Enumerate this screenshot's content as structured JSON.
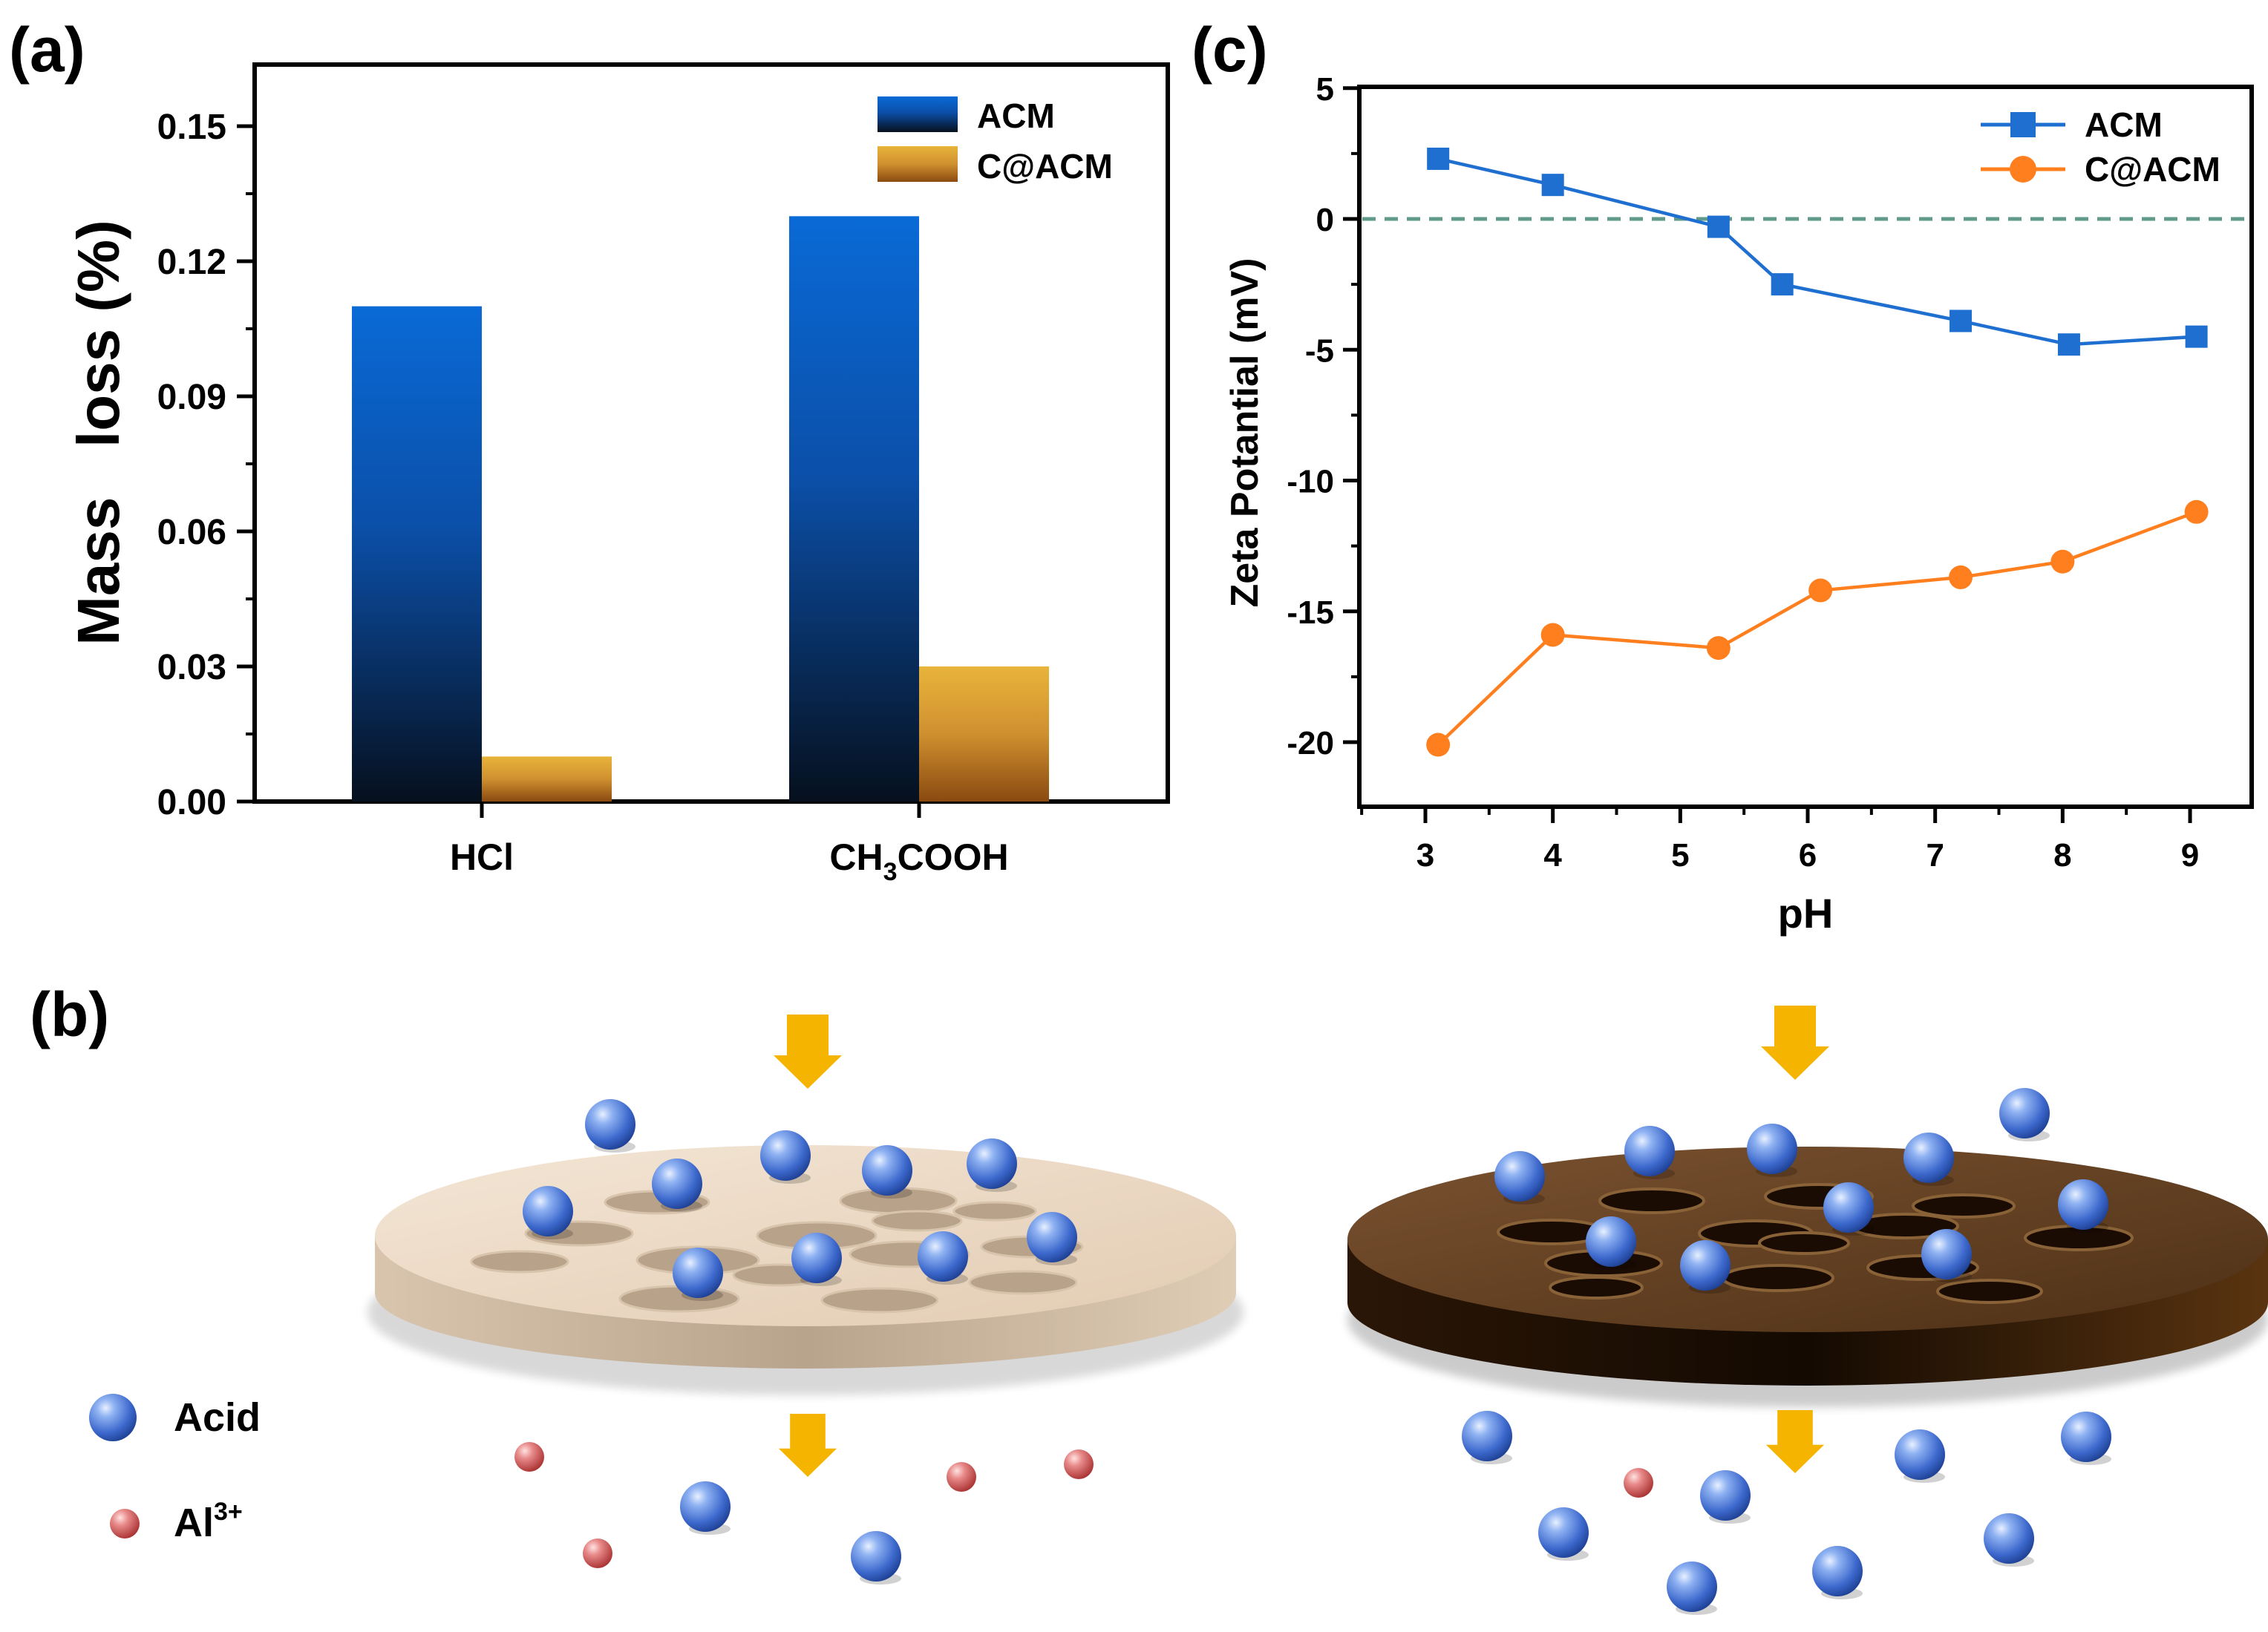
{
  "panels": {
    "a": "(a)",
    "b": "(b)",
    "c": "(c)"
  },
  "colors": {
    "acm_blue": "#1565c0",
    "acm_blue_top": "#0a6ad6",
    "acm_blue_bottom": "#06101e",
    "cacm_gold_top": "#e8b43a",
    "cacm_gold_bottom": "#8a4a10",
    "line_blue": "#1f6fd1",
    "line_orange": "#ff7f1f",
    "zero_line": "#5f9a8a",
    "arrow": "#f5b400",
    "membrane_light": "#ecd9c4",
    "membrane_dark": "#5a3818",
    "acid_sphere": "#4a78d8",
    "al_sphere": "#d85a5a"
  },
  "chart_data": [
    {
      "type": "bar",
      "title": "",
      "xlabel": "",
      "ylabel": "Mass   loss (%)",
      "categories": [
        "HCl",
        "CH3COOH"
      ],
      "category_display": [
        {
          "main": "HCl",
          "sub": "",
          "tail": ""
        },
        {
          "main": "CH",
          "sub": "3",
          "tail": "COOH"
        }
      ],
      "series": [
        {
          "name": "ACM",
          "values": [
            0.11,
            0.13
          ]
        },
        {
          "name": "C@ACM",
          "values": [
            0.01,
            0.03
          ]
        }
      ],
      "ylim": [
        0,
        0.16
      ],
      "yticks": [
        "0.00",
        "0.03",
        "0.06",
        "0.09",
        "0.12",
        "0.15"
      ],
      "ytick_values": [
        0,
        0.03,
        0.06,
        0.09,
        0.12,
        0.15
      ],
      "legend": "top-right"
    },
    {
      "type": "line",
      "title": "",
      "xlabel": "pH",
      "ylabel": "Zeta Potantial (mV)",
      "xlim": [
        2.5,
        9.5
      ],
      "ylim": [
        -22.5,
        5
      ],
      "xticks": [
        "3",
        "4",
        "5",
        "6",
        "7",
        "8",
        "9"
      ],
      "xtick_values": [
        3,
        4,
        5,
        6,
        7,
        8,
        9
      ],
      "yticks": [
        "5",
        "0",
        "-5",
        "-10",
        "-15",
        "-20"
      ],
      "ytick_values": [
        5,
        0,
        -5,
        -10,
        -15,
        -20
      ],
      "reference_line": 0,
      "series": [
        {
          "name": "ACM",
          "marker": "square",
          "x": [
            3.1,
            4.0,
            5.3,
            5.8,
            7.2,
            8.05,
            9.05
          ],
          "y": [
            2.3,
            1.3,
            -0.3,
            -2.5,
            -3.9,
            -4.8,
            -4.5
          ]
        },
        {
          "name": "C@ACM",
          "marker": "circle",
          "x": [
            3.1,
            4.0,
            5.3,
            6.1,
            7.2,
            8.0,
            9.05
          ],
          "y": [
            -20.1,
            -15.9,
            -16.4,
            -14.2,
            -13.7,
            -13.1,
            -11.2
          ]
        }
      ],
      "legend": "top-right"
    }
  ],
  "schematic": {
    "legend": {
      "acid": "Acid",
      "al_main": "Al",
      "al_sup": "3+"
    }
  }
}
